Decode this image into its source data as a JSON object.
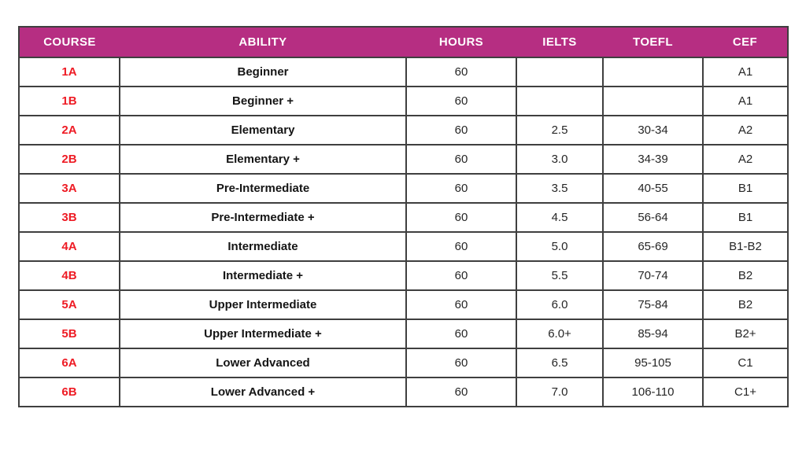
{
  "chart_data": {
    "type": "table",
    "columns": [
      "COURSE",
      "ABILITY",
      "HOURS",
      "IELTS",
      "TOEFL",
      "CEF"
    ],
    "column_keys": [
      "course",
      "ability",
      "hours",
      "ielts",
      "toefl",
      "cef"
    ],
    "rows": [
      [
        "1A",
        "Beginner",
        "60",
        "",
        "",
        "A1"
      ],
      [
        "1B",
        "Beginner +",
        "60",
        "",
        "",
        "A1"
      ],
      [
        "2A",
        "Elementary",
        "60",
        "2.5",
        "30-34",
        "A2"
      ],
      [
        "2B",
        "Elementary +",
        "60",
        "3.0",
        "34-39",
        "A2"
      ],
      [
        "3A",
        "Pre-Intermediate",
        "60",
        "3.5",
        "40-55",
        "B1"
      ],
      [
        "3B",
        "Pre-Intermediate +",
        "60",
        "4.5",
        "56-64",
        "B1"
      ],
      [
        "4A",
        "Intermediate",
        "60",
        "5.0",
        "65-69",
        "B1-B2"
      ],
      [
        "4B",
        "Intermediate +",
        "60",
        "5.5",
        "70-74",
        "B2"
      ],
      [
        "5A",
        "Upper Intermediate",
        "60",
        "6.0",
        "75-84",
        "B2"
      ],
      [
        "5B",
        "Upper Intermediate +",
        "60",
        "6.0+",
        "85-94",
        "B2+"
      ],
      [
        "6A",
        "Lower Advanced",
        "60",
        "6.5",
        "95-105",
        "C1"
      ],
      [
        "6B",
        "Lower Advanced +",
        "60",
        "7.0",
        "106-110",
        "C1+"
      ]
    ],
    "layout": {
      "legend": "none",
      "grid": "table-borders",
      "header_has_vertical_dividers": false
    }
  },
  "colors": {
    "header_bg": "#B62E82",
    "header_text": "#FFFFFF",
    "border": "#3F3F3F",
    "course_text": "#EE1B24",
    "ability_text": "#151515",
    "value_text": "#262626",
    "background": "#FFFFFF"
  }
}
